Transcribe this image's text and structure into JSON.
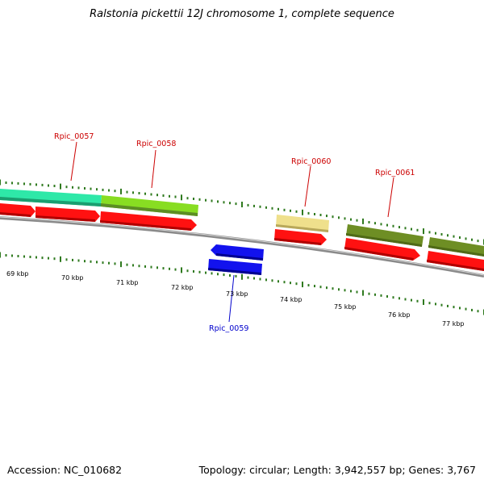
{
  "title": "Ralstonia pickettii 12J chromosome 1, complete sequence",
  "footer": {
    "accession": "Accession: NC_010682",
    "summary": "Topology: circular; Length: 3,942,557 bp; Genes: 3,767"
  },
  "colors": {
    "cds": "#ff1111",
    "cds_dark": "#b00000",
    "reverse_cds": "#1212ee",
    "reverse_cds_dark": "#000090",
    "backbone": "#8a8a8a",
    "tick": "#2f7a1f",
    "label_forward": "#cc0000",
    "label_reverse": "#0000cc"
  },
  "kbp_labels": [
    "69 kbp",
    "70 kbp",
    "71 kbp",
    "72 kbp",
    "73 kbp",
    "74 kbp",
    "75 kbp",
    "76 kbp",
    "77 kbp"
  ],
  "genes": [
    {
      "name": "Rpic_0057",
      "strand": "forward"
    },
    {
      "name": "Rpic_0058",
      "strand": "forward"
    },
    {
      "name": "Rpic_0059",
      "strand": "reverse"
    },
    {
      "name": "Rpic_0060",
      "strand": "forward"
    },
    {
      "name": "Rpic_0061",
      "strand": "forward"
    }
  ],
  "feature_track_colors": [
    "#2ee8a8",
    "#88dd22",
    "#efe08c",
    "#6e8e24",
    "#6e8e24"
  ]
}
